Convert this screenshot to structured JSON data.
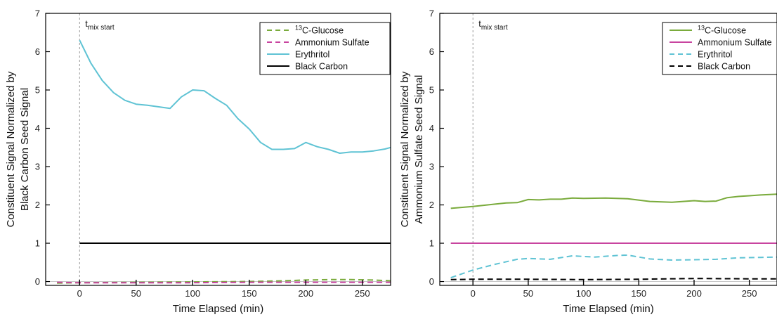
{
  "chart_data": [
    {
      "type": "line",
      "title": "",
      "xlabel": "Time Elapsed (min)",
      "ylabel_lines": [
        "Constituent Signal Normalized by",
        "Black Carbon Seed Signal"
      ],
      "xlim": [
        -30,
        275
      ],
      "ylim": [
        -0.1,
        7
      ],
      "xticks": [
        0,
        50,
        100,
        150,
        200,
        250
      ],
      "yticks": [
        0,
        1,
        2,
        3,
        4,
        5,
        6,
        7
      ],
      "grid": false,
      "legend_position": "top-right",
      "annotation": {
        "main": "t",
        "sub": "mix start",
        "x": 0
      },
      "series": [
        {
          "name": "13C-Glucose",
          "name_sup": "13",
          "name_main": "C-Glucose",
          "color": "#7aab3c",
          "dash": "dashed",
          "x": [
            -20,
            0,
            50,
            100,
            150,
            180,
            200,
            220,
            240,
            260,
            275
          ],
          "y": [
            -0.04,
            -0.03,
            -0.02,
            -0.01,
            0.0,
            0.02,
            0.04,
            0.05,
            0.05,
            0.04,
            0.02
          ]
        },
        {
          "name": "Ammonium Sulfate",
          "color": "#c8449f",
          "dash": "dashed",
          "x": [
            -20,
            0,
            50,
            100,
            150,
            200,
            250,
            275
          ],
          "y": [
            -0.02,
            -0.03,
            -0.03,
            -0.03,
            -0.02,
            -0.02,
            -0.02,
            -0.02
          ]
        },
        {
          "name": "Erythritol",
          "color": "#5fc3d4",
          "dash": "solid",
          "x": [
            0,
            10,
            20,
            30,
            40,
            50,
            60,
            70,
            80,
            90,
            100,
            110,
            120,
            130,
            140,
            150,
            160,
            170,
            180,
            190,
            200,
            210,
            220,
            230,
            240,
            250,
            260,
            270,
            275
          ],
          "y": [
            6.3,
            5.7,
            5.25,
            4.93,
            4.73,
            4.63,
            4.6,
            4.56,
            4.52,
            4.82,
            5.0,
            4.98,
            4.78,
            4.6,
            4.25,
            3.98,
            3.63,
            3.45,
            3.45,
            3.47,
            3.63,
            3.52,
            3.45,
            3.35,
            3.38,
            3.38,
            3.41,
            3.46,
            3.5
          ]
        },
        {
          "name": "Black Carbon",
          "color": "#000000",
          "dash": "solid",
          "x": [
            0,
            275
          ],
          "y": [
            1.0,
            1.0
          ]
        }
      ]
    },
    {
      "type": "line",
      "title": "",
      "xlabel": "Time Elapsed (min)",
      "ylabel_lines": [
        "Constituent Signal Normalized by",
        "Ammonium Sulfate Seed Signal"
      ],
      "xlim": [
        -30,
        275
      ],
      "ylim": [
        -0.1,
        7
      ],
      "xticks": [
        0,
        50,
        100,
        150,
        200,
        250
      ],
      "yticks": [
        0,
        1,
        2,
        3,
        4,
        5,
        6,
        7
      ],
      "grid": false,
      "legend_position": "top-right",
      "annotation": {
        "main": "t",
        "sub": "mix start",
        "x": 0
      },
      "series": [
        {
          "name": "13C-Glucose",
          "name_sup": "13",
          "name_main": "C-Glucose",
          "color": "#7aab3c",
          "dash": "solid",
          "x": [
            -20,
            0,
            20,
            30,
            40,
            50,
            60,
            70,
            80,
            90,
            100,
            120,
            140,
            160,
            180,
            200,
            210,
            220,
            230,
            240,
            250,
            260,
            275
          ],
          "y": [
            1.91,
            1.96,
            2.02,
            2.05,
            2.06,
            2.14,
            2.13,
            2.15,
            2.15,
            2.18,
            2.17,
            2.18,
            2.16,
            2.09,
            2.07,
            2.11,
            2.09,
            2.1,
            2.19,
            2.22,
            2.24,
            2.26,
            2.28
          ]
        },
        {
          "name": "Ammonium Sulfate",
          "color": "#c8449f",
          "dash": "solid",
          "x": [
            -20,
            275
          ],
          "y": [
            1.0,
            1.0
          ]
        },
        {
          "name": "Erythritol",
          "color": "#5fc3d4",
          "dash": "dashed",
          "x": [
            -20,
            0,
            20,
            40,
            50,
            70,
            90,
            110,
            130,
            140,
            160,
            180,
            200,
            220,
            240,
            260,
            275
          ],
          "y": [
            0.1,
            0.3,
            0.45,
            0.58,
            0.6,
            0.58,
            0.67,
            0.64,
            0.68,
            0.69,
            0.59,
            0.56,
            0.57,
            0.58,
            0.62,
            0.63,
            0.64
          ]
        },
        {
          "name": "Black Carbon",
          "color": "#000000",
          "dash": "dashed",
          "x": [
            -20,
            0,
            50,
            100,
            150,
            200,
            250,
            275
          ],
          "y": [
            0.05,
            0.06,
            0.06,
            0.05,
            0.06,
            0.08,
            0.07,
            0.07
          ]
        }
      ]
    }
  ]
}
